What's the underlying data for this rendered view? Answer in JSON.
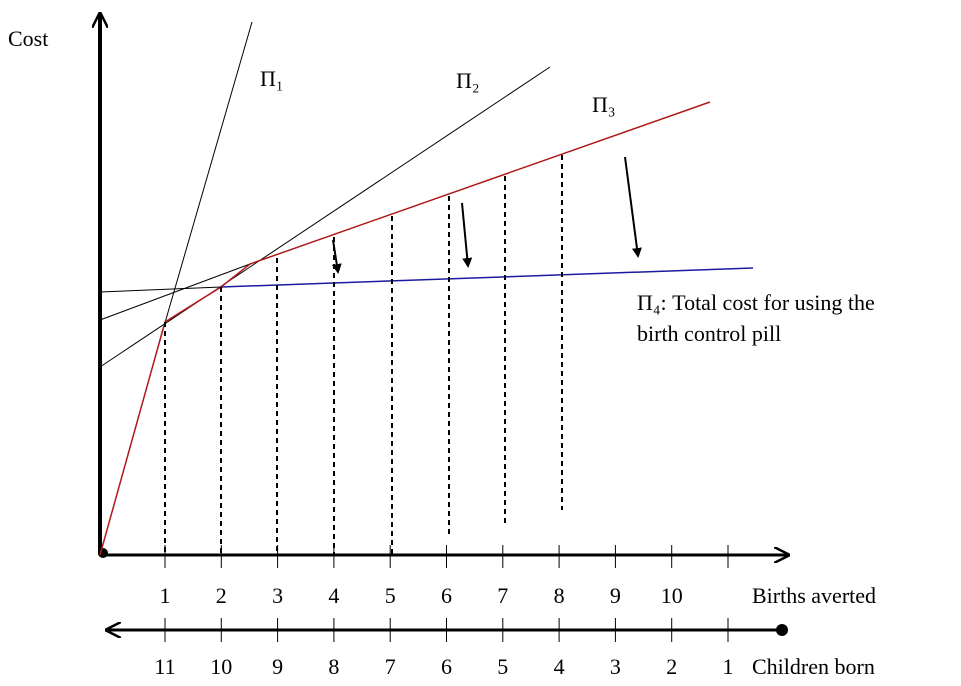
{
  "y_axis_label": "Cost",
  "lines": {
    "pi1": "Π₁",
    "pi2": "Π₂",
    "pi3": "Π₃"
  },
  "pi4_label": [
    "Π₄: Total cost for using the",
    "birth control pill"
  ],
  "births_averted": {
    "label": "Births averted",
    "ticks": [
      "1",
      "2",
      "3",
      "4",
      "5",
      "6",
      "7",
      "8",
      "9",
      "10"
    ]
  },
  "children_born": {
    "label": "Children born",
    "ticks": [
      "11",
      "10",
      "9",
      "8",
      "7",
      "6",
      "5",
      "4",
      "3",
      "2",
      "1"
    ]
  }
}
